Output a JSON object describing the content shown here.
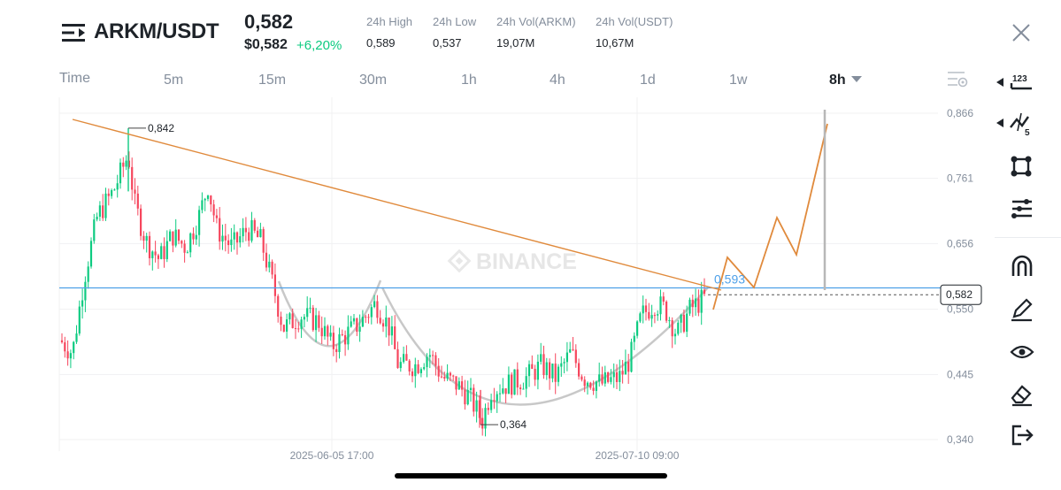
{
  "header": {
    "pair": "ARKM/USDT",
    "last_price": "0,582",
    "price_usd": "$0,582",
    "change": "+6,20%",
    "stats": [
      {
        "label": "24h High",
        "value": "0,589"
      },
      {
        "label": "24h Low",
        "value": "0,537"
      },
      {
        "label": "24h Vol(ARKM)",
        "value": "19,07M"
      },
      {
        "label": "24h Vol(USDT)",
        "value": "10,67M"
      }
    ]
  },
  "timeframes": [
    "Time",
    "5m",
    "15m",
    "30m",
    "1h",
    "4h",
    "1d",
    "1w"
  ],
  "active_timeframe": "8h",
  "toolbar": {
    "icons": [
      "numbers-icon",
      "indicator-icon",
      "shape-icon",
      "lines-icon",
      "magnet-icon",
      "pencil-icon",
      "eye-icon",
      "eraser-icon",
      "exit-icon"
    ]
  },
  "chart_data": {
    "type": "candlestick",
    "watermark": "BINANCE",
    "y_ticks": [
      "0,866",
      "0,761",
      "0,656",
      "0,550",
      "0,445",
      "0,340"
    ],
    "ylim": [
      0.34,
      0.866
    ],
    "x_ticks": [
      "2025-06-05 17:00",
      "2025-07-10 09:00"
    ],
    "current_price_label": "0,582",
    "high_marker": "0,842",
    "low_marker": "0,364",
    "resistance_label": "0,593",
    "colors": {
      "up": "#0ecb81",
      "down": "#f6465d",
      "trendline": "#e08a3c",
      "level": "#4ea0e8",
      "arc": "#c8c8c8"
    }
  }
}
